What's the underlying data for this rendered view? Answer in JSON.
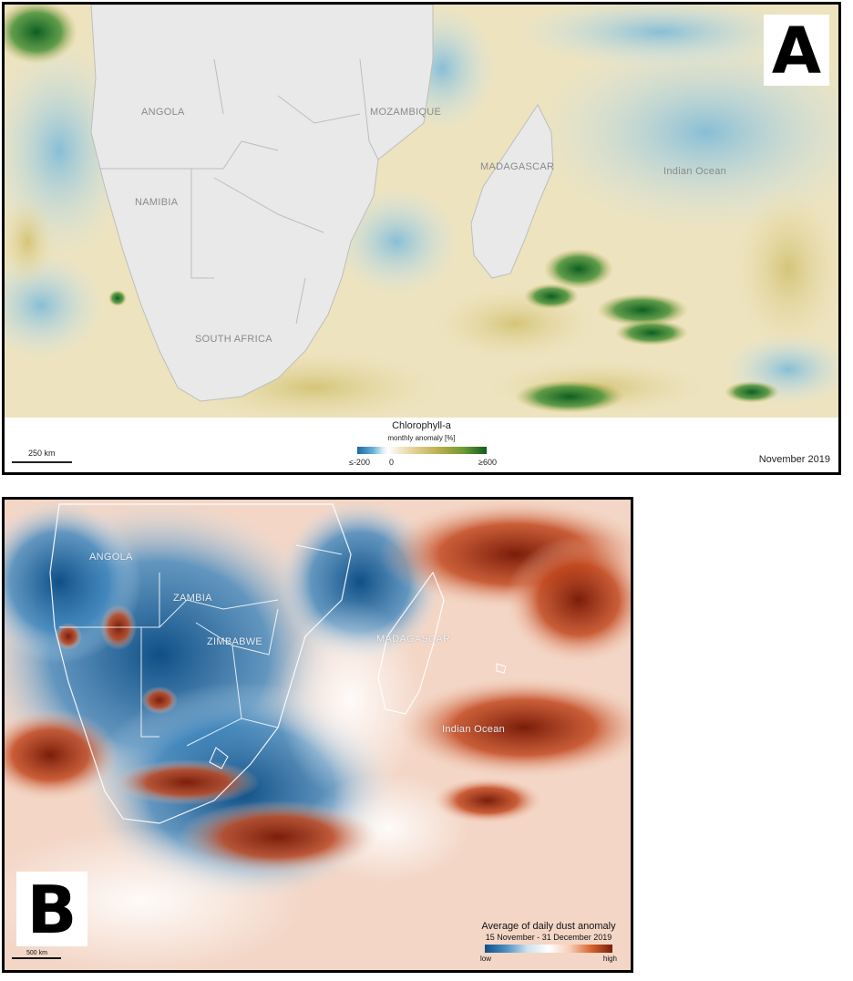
{
  "panel_a": {
    "letter": "A",
    "places": {
      "angola": "ANGOLA",
      "namibia": "NAMIBIA",
      "south_africa": "SOUTH AFRICA",
      "mozambique": "MOZAMBIQUE",
      "madagascar": "MADAGASCAR",
      "indian_ocean": "Indian Ocean"
    },
    "scale_label": "250 km",
    "legend": {
      "title": "Chlorophyll-a",
      "subtitle": "monthly anomaly [%]",
      "tick_low": "≤-200",
      "tick_mid": "0",
      "tick_high": "≥600"
    },
    "date": "November 2019"
  },
  "panel_b": {
    "letter": "B",
    "places": {
      "angola": "ANGOLA",
      "zambia": "ZAMBIA",
      "zimbabwe": "ZIMBABWE",
      "madagascar": "MADAGASCAR",
      "indian_ocean": "Indian Ocean"
    },
    "legend": {
      "title": "Average of daily dust anomaly",
      "subtitle": "15 November - 31 December 2019",
      "low": "low",
      "high": "high"
    },
    "scale_label": "500 km"
  },
  "colors": {
    "chlorophyll_low": "#1b6aa0",
    "chlorophyll_high": "#0f5f1f",
    "dust_low": "#0f4f86",
    "dust_high": "#7a1d0a",
    "land": "#e9e9e9"
  }
}
